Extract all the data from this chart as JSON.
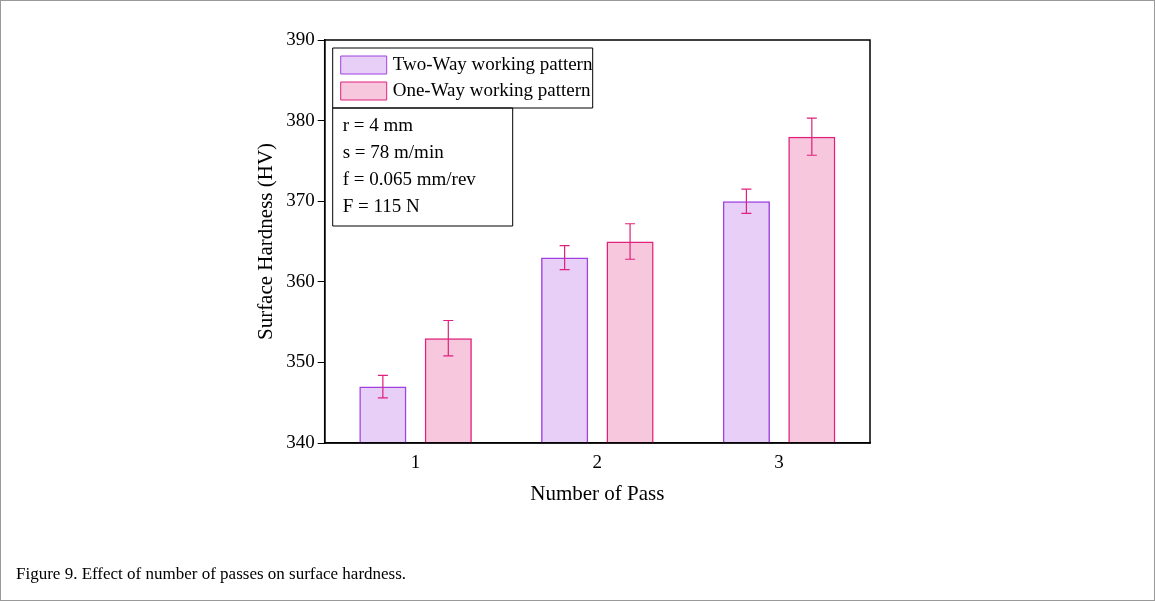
{
  "chart_data": {
    "type": "bar",
    "xlabel": "Number of Pass",
    "ylabel": "Surface Hardness (HV)",
    "categories": [
      "1",
      "2",
      "3"
    ],
    "series": [
      {
        "name": "Two-Way working pattern",
        "color": "#a040e0",
        "values": [
          347,
          363,
          370
        ],
        "errors": [
          1.4,
          1.5,
          1.5
        ]
      },
      {
        "name": "One-Way working pattern",
        "color": "#e0207a",
        "values": [
          353,
          365,
          378
        ],
        "errors": [
          2.2,
          2.2,
          2.3
        ]
      }
    ],
    "ylim": [
      340,
      390
    ],
    "yticks": [
      340,
      350,
      360,
      370,
      380,
      390
    ],
    "grid": false,
    "legend": "top left",
    "annotations": [
      "r = 4 mm",
      "s = 78 m/min",
      "f = 0.065 mm/rev",
      "F = 115 N",
      "Figure 9. Effect of number of passes on surface hardness."
    ]
  }
}
